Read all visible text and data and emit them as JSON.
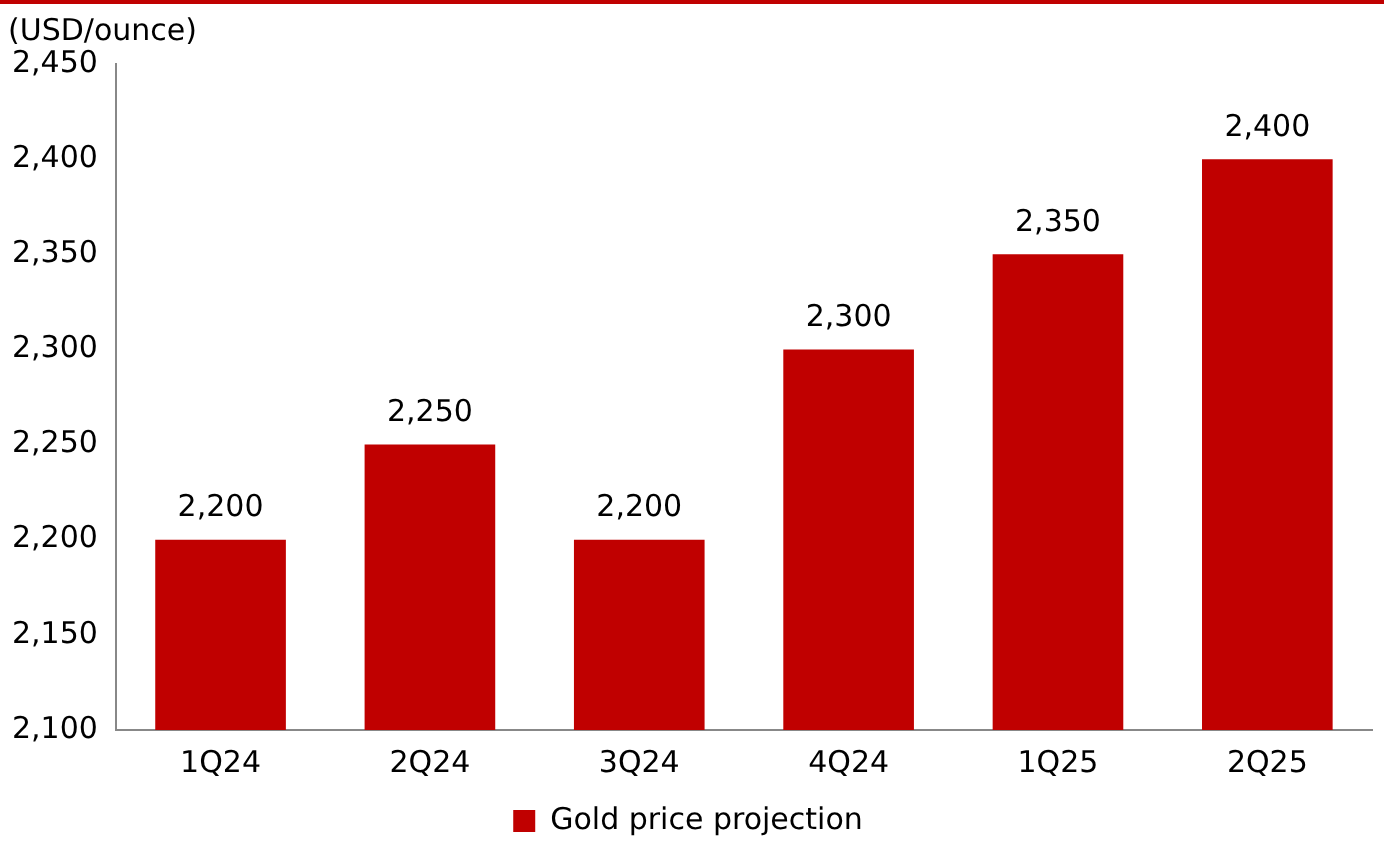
{
  "chart_data": {
    "type": "bar",
    "ylabel": "(USD/ounce)",
    "categories": [
      "1Q24",
      "2Q24",
      "3Q24",
      "4Q24",
      "1Q25",
      "2Q25"
    ],
    "series": [
      {
        "name": "Gold price projection",
        "color": "#c00000",
        "values": [
          2200,
          2250,
          2200,
          2300,
          2350,
          2400
        ],
        "value_labels": [
          "2,200",
          "2,250",
          "2,200",
          "2,300",
          "2,350",
          "2,400"
        ]
      }
    ],
    "ylim": [
      2100,
      2450
    ],
    "yticks": [
      {
        "value": 2100,
        "label": "2,100"
      },
      {
        "value": 2150,
        "label": "2,150"
      },
      {
        "value": 2200,
        "label": "2,200"
      },
      {
        "value": 2250,
        "label": "2,250"
      },
      {
        "value": 2300,
        "label": "2,300"
      },
      {
        "value": 2350,
        "label": "2,350"
      },
      {
        "value": 2400,
        "label": "2,400"
      },
      {
        "value": 2450,
        "label": "2,450"
      }
    ],
    "grid": false,
    "legend": "bottom"
  }
}
